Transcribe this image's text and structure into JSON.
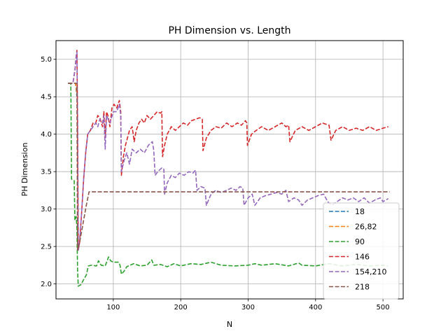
{
  "chart_data": {
    "type": "line",
    "title": "PH Dimension vs. Length",
    "xlabel": "N",
    "ylabel": "PH Dimension",
    "xlim": [
      15,
      530
    ],
    "ylim": [
      1.8,
      5.25
    ],
    "xticks": [
      100,
      200,
      300,
      400,
      500
    ],
    "yticks": [
      2.0,
      2.5,
      3.0,
      3.5,
      4.0,
      4.5,
      5.0
    ],
    "grid": true,
    "legend_position": "lower-right",
    "series": [
      {
        "name": "18",
        "color": "#1f77b4",
        "points": [
          [
            33,
            4.68
          ],
          [
            44,
            4.68
          ],
          [
            46,
            4.5
          ]
        ]
      },
      {
        "name": "26,82",
        "color": "#ff7f0e",
        "points": [
          [
            33,
            4.68
          ],
          [
            44,
            4.68
          ],
          [
            46,
            4.55
          ]
        ]
      },
      {
        "name": "90",
        "color": "#2ca02c",
        "points": [
          [
            33,
            4.68
          ],
          [
            37,
            4.68
          ],
          [
            38,
            3.4
          ],
          [
            42,
            3.38
          ],
          [
            43,
            2.85
          ],
          [
            45,
            2.9
          ],
          [
            46,
            2.75
          ],
          [
            47,
            2.2
          ],
          [
            48,
            1.97
          ],
          [
            52,
            1.99
          ],
          [
            55,
            2.04
          ],
          [
            60,
            2.12
          ],
          [
            63,
            2.24
          ],
          [
            68,
            2.25
          ],
          [
            75,
            2.24
          ],
          [
            78,
            2.31
          ],
          [
            82,
            2.25
          ],
          [
            88,
            2.24
          ],
          [
            93,
            2.36
          ],
          [
            96,
            2.31
          ],
          [
            100,
            2.29
          ],
          [
            108,
            2.29
          ],
          [
            110,
            2.25
          ],
          [
            112,
            2.13
          ],
          [
            116,
            2.17
          ],
          [
            120,
            2.23
          ],
          [
            130,
            2.27
          ],
          [
            140,
            2.24
          ],
          [
            150,
            2.25
          ],
          [
            157,
            2.32
          ],
          [
            160,
            2.25
          ],
          [
            170,
            2.26
          ],
          [
            180,
            2.23
          ],
          [
            190,
            2.27
          ],
          [
            200,
            2.24
          ],
          [
            215,
            2.27
          ],
          [
            230,
            2.26
          ],
          [
            245,
            2.29
          ],
          [
            260,
            2.25
          ],
          [
            280,
            2.24
          ],
          [
            300,
            2.25
          ],
          [
            310,
            2.27
          ],
          [
            320,
            2.25
          ],
          [
            340,
            2.27
          ],
          [
            360,
            2.24
          ],
          [
            375,
            2.28
          ],
          [
            380,
            2.25
          ],
          [
            400,
            2.24
          ],
          [
            420,
            2.27
          ],
          [
            440,
            2.24
          ],
          [
            460,
            2.26
          ],
          [
            480,
            2.24
          ],
          [
            500,
            2.25
          ],
          [
            508,
            2.24
          ]
        ]
      },
      {
        "name": "146",
        "color": "#d62728",
        "points": [
          [
            33,
            4.68
          ],
          [
            40,
            4.68
          ],
          [
            43,
            4.85
          ],
          [
            45,
            5.05
          ],
          [
            46,
            5.12
          ],
          [
            47,
            4.2
          ],
          [
            48,
            2.45
          ],
          [
            50,
            2.55
          ],
          [
            53,
            2.95
          ],
          [
            56,
            3.4
          ],
          [
            59,
            3.75
          ],
          [
            62,
            4.0
          ],
          [
            66,
            4.05
          ],
          [
            70,
            4.15
          ],
          [
            74,
            4.15
          ],
          [
            77,
            4.25
          ],
          [
            80,
            4.22
          ],
          [
            84,
            4.1
          ],
          [
            86,
            4.3
          ],
          [
            88,
            3.95
          ],
          [
            90,
            4.3
          ],
          [
            92,
            4.25
          ],
          [
            95,
            4.1
          ],
          [
            98,
            4.35
          ],
          [
            101,
            4.4
          ],
          [
            105,
            4.35
          ],
          [
            109,
            4.45
          ],
          [
            111,
            4.3
          ],
          [
            112,
            3.45
          ],
          [
            115,
            3.7
          ],
          [
            118,
            3.85
          ],
          [
            121,
            3.95
          ],
          [
            124,
            4.05
          ],
          [
            128,
            4.1
          ],
          [
            131,
            3.9
          ],
          [
            134,
            4.05
          ],
          [
            138,
            4.15
          ],
          [
            142,
            4.2
          ],
          [
            146,
            4.15
          ],
          [
            150,
            4.25
          ],
          [
            155,
            4.2
          ],
          [
            160,
            4.25
          ],
          [
            165,
            4.3
          ],
          [
            170,
            4.28
          ],
          [
            172,
            4.3
          ],
          [
            173,
            3.7
          ],
          [
            176,
            3.85
          ],
          [
            180,
            4.0
          ],
          [
            186,
            4.1
          ],
          [
            192,
            4.05
          ],
          [
            198,
            4.1
          ],
          [
            204,
            4.15
          ],
          [
            210,
            4.12
          ],
          [
            216,
            4.18
          ],
          [
            222,
            4.2
          ],
          [
            228,
            4.22
          ],
          [
            232,
            4.2
          ],
          [
            233,
            3.78
          ],
          [
            238,
            3.95
          ],
          [
            245,
            4.05
          ],
          [
            252,
            4.1
          ],
          [
            260,
            4.08
          ],
          [
            268,
            4.15
          ],
          [
            276,
            4.1
          ],
          [
            284,
            4.15
          ],
          [
            290,
            4.12
          ],
          [
            296,
            4.18
          ],
          [
            298,
            4.15
          ],
          [
            299,
            3.85
          ],
          [
            305,
            4.0
          ],
          [
            312,
            4.05
          ],
          [
            320,
            4.1
          ],
          [
            330,
            4.05
          ],
          [
            340,
            4.1
          ],
          [
            350,
            4.15
          ],
          [
            356,
            4.1
          ],
          [
            360,
            4.12
          ],
          [
            362,
            3.9
          ],
          [
            370,
            4.05
          ],
          [
            380,
            4.1
          ],
          [
            390,
            4.05
          ],
          [
            400,
            4.1
          ],
          [
            410,
            4.15
          ],
          [
            420,
            4.12
          ],
          [
            423,
            3.92
          ],
          [
            430,
            4.05
          ],
          [
            440,
            4.1
          ],
          [
            450,
            4.05
          ],
          [
            460,
            4.08
          ],
          [
            470,
            4.05
          ],
          [
            480,
            4.1
          ],
          [
            490,
            4.05
          ],
          [
            500,
            4.08
          ],
          [
            508,
            4.1
          ]
        ]
      },
      {
        "name": "154,210",
        "color": "#9467bd",
        "points": [
          [
            33,
            4.68
          ],
          [
            40,
            4.68
          ],
          [
            43,
            4.85
          ],
          [
            45,
            5.05
          ],
          [
            46,
            5.1
          ],
          [
            47,
            4.2
          ],
          [
            48,
            2.45
          ],
          [
            50,
            2.55
          ],
          [
            53,
            2.95
          ],
          [
            56,
            3.4
          ],
          [
            59,
            3.75
          ],
          [
            62,
            4.0
          ],
          [
            66,
            4.05
          ],
          [
            70,
            4.1
          ],
          [
            74,
            4.15
          ],
          [
            77,
            4.1
          ],
          [
            80,
            4.2
          ],
          [
            84,
            4.15
          ],
          [
            86,
            4.25
          ],
          [
            88,
            3.8
          ],
          [
            90,
            4.25
          ],
          [
            95,
            4.15
          ],
          [
            100,
            4.3
          ],
          [
            105,
            4.3
          ],
          [
            109,
            4.4
          ],
          [
            111,
            4.25
          ],
          [
            112,
            3.5
          ],
          [
            116,
            3.65
          ],
          [
            120,
            3.75
          ],
          [
            124,
            3.6
          ],
          [
            128,
            3.8
          ],
          [
            134,
            3.75
          ],
          [
            140,
            3.8
          ],
          [
            146,
            3.75
          ],
          [
            152,
            3.85
          ],
          [
            158,
            3.9
          ],
          [
            160,
            3.78
          ],
          [
            162,
            3.45
          ],
          [
            166,
            3.5
          ],
          [
            172,
            3.55
          ],
          [
            175,
            3.53
          ],
          [
            176,
            3.2
          ],
          [
            180,
            3.35
          ],
          [
            186,
            3.45
          ],
          [
            192,
            3.42
          ],
          [
            198,
            3.48
          ],
          [
            205,
            3.45
          ],
          [
            212,
            3.5
          ],
          [
            218,
            3.48
          ],
          [
            222,
            3.52
          ],
          [
            224,
            3.25
          ],
          [
            230,
            3.3
          ],
          [
            236,
            3.28
          ],
          [
            238,
            3.05
          ],
          [
            245,
            3.2
          ],
          [
            252,
            3.25
          ],
          [
            260,
            3.22
          ],
          [
            268,
            3.25
          ],
          [
            275,
            3.28
          ],
          [
            282,
            3.25
          ],
          [
            288,
            3.3
          ],
          [
            292,
            3.28
          ],
          [
            294,
            3.05
          ],
          [
            300,
            3.15
          ],
          [
            306,
            3.2
          ],
          [
            310,
            3.05
          ],
          [
            318,
            3.15
          ],
          [
            326,
            3.18
          ],
          [
            334,
            3.2
          ],
          [
            342,
            3.22
          ],
          [
            350,
            3.2
          ],
          [
            356,
            3.25
          ],
          [
            360,
            3.1
          ],
          [
            368,
            3.15
          ],
          [
            375,
            3.12
          ],
          [
            380,
            3.05
          ],
          [
            388,
            3.12
          ],
          [
            396,
            3.15
          ],
          [
            404,
            3.18
          ],
          [
            412,
            3.2
          ],
          [
            418,
            3.1
          ],
          [
            424,
            3.05
          ],
          [
            432,
            3.1
          ],
          [
            440,
            3.15
          ],
          [
            448,
            3.12
          ],
          [
            456,
            3.15
          ],
          [
            464,
            3.1
          ],
          [
            472,
            3.15
          ],
          [
            480,
            3.08
          ],
          [
            488,
            3.12
          ],
          [
            496,
            3.15
          ],
          [
            500,
            3.1
          ],
          [
            508,
            3.14
          ]
        ]
      },
      {
        "name": "218",
        "color": "#8c564b",
        "points": [
          [
            33,
            4.68
          ],
          [
            46,
            4.68
          ],
          [
            47,
            2.45
          ],
          [
            50,
            2.55
          ],
          [
            55,
            2.8
          ],
          [
            60,
            3.05
          ],
          [
            64,
            3.23
          ],
          [
            100,
            3.23
          ],
          [
            200,
            3.23
          ],
          [
            300,
            3.23
          ],
          [
            400,
            3.23
          ],
          [
            510,
            3.23
          ]
        ]
      }
    ]
  }
}
